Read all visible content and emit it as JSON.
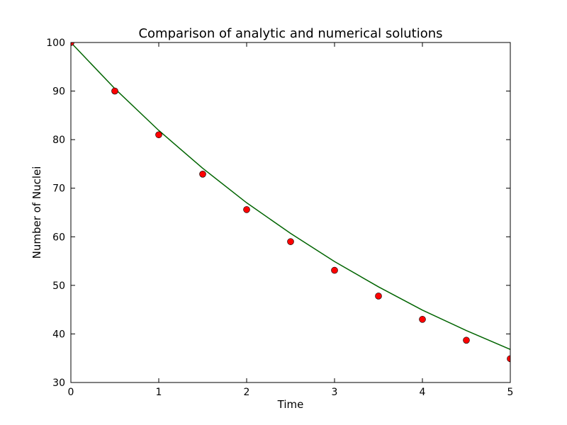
{
  "chart_data": {
    "type": "line",
    "title": "Comparison of analytic and numerical solutions",
    "xlabel": "Time",
    "ylabel": "Number of Nuclei",
    "xlim": [
      0,
      5
    ],
    "ylim": [
      30,
      100
    ],
    "xticks": [
      "0",
      "1",
      "2",
      "3",
      "4",
      "5"
    ],
    "yticks": [
      "30",
      "40",
      "50",
      "60",
      "70",
      "80",
      "90",
      "100"
    ],
    "grid": false,
    "legend": "none",
    "series": [
      {
        "kind": "line",
        "color": "#006400",
        "x": [
          0,
          0.5,
          1,
          1.5,
          2,
          2.5,
          3,
          3.5,
          4,
          4.5,
          5
        ],
        "y": [
          100,
          90.5,
          81.9,
          74.1,
          67.0,
          60.7,
          54.9,
          49.7,
          44.9,
          40.7,
          36.8
        ]
      },
      {
        "kind": "points",
        "color": "#ff0000",
        "x": [
          0,
          0.5,
          1,
          1.5,
          2,
          2.5,
          3,
          3.5,
          4,
          4.5,
          5
        ],
        "y": [
          100,
          90.0,
          81.0,
          72.9,
          65.6,
          59.0,
          53.1,
          47.8,
          43.0,
          38.7,
          34.9
        ]
      }
    ]
  }
}
